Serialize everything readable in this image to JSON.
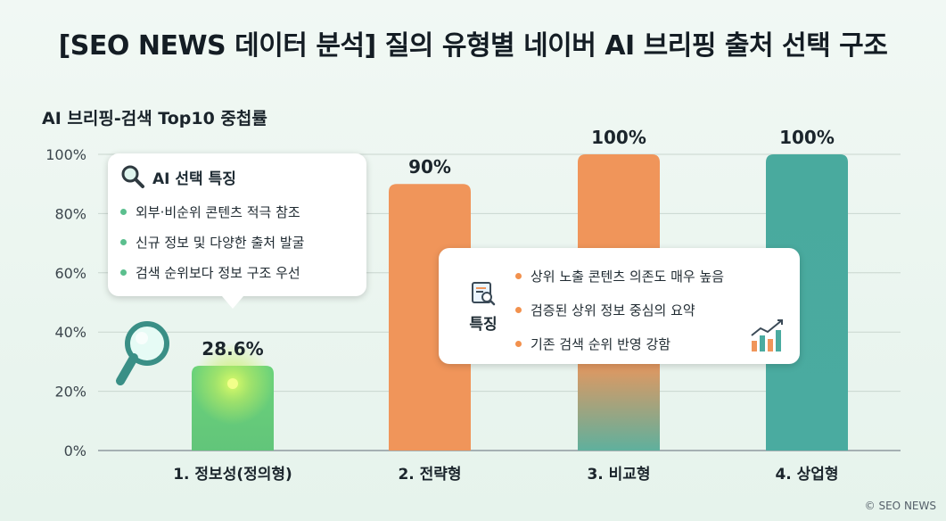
{
  "title": "[SEO NEWS 데이터 분석] 질의 유형별 네이버 AI 브리핑 출처 선택 구조",
  "watermark": "© SEO NEWS",
  "ai_callout": {
    "heading": "AI 선택 특징",
    "items": [
      "외부·비순위 콘텐츠 적극 참조",
      "신규 정보 및 다양한 출처 발굴",
      "검색 순위보다 정보 구조 우선"
    ],
    "icon": "magnifier-icon"
  },
  "feature_callout": {
    "heading": "특징",
    "items": [
      "상위 노출 콘텐츠 의존도 매우 높음",
      "검증된 상위 정보 중심의 요약",
      "기존 검색 순위 반영 강함"
    ],
    "icons": [
      "document-search-icon",
      "growth-chart-icon"
    ]
  },
  "colors": {
    "green": "#6ccf7c",
    "orange": "#f0955a",
    "teal": "#4aaba0",
    "glow": "#d6f56a"
  },
  "chart_data": {
    "type": "bar",
    "title": "AI 브리핑-검색 Top10 중첩률",
    "categories": [
      "1. 정보성(정의형)",
      "2. 전략형",
      "3. 비교형",
      "4. 상업형"
    ],
    "values": [
      28.6,
      90,
      100,
      100
    ],
    "value_labels": [
      "28.6%",
      "90%",
      "100%",
      "100%"
    ],
    "ylim": [
      0,
      100
    ],
    "yticks": [
      0,
      20,
      40,
      60,
      80,
      100
    ],
    "ytick_labels": [
      "0%",
      "20%",
      "40%",
      "60%",
      "80%",
      "100%"
    ],
    "grid": true,
    "legend": "none"
  }
}
